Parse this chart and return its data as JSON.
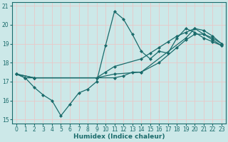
{
  "xlabel": "Humidex (Indice chaleur)",
  "bg_color": "#cce8e8",
  "grid_color": "#e8c8c8",
  "line_color": "#1a6b6b",
  "xlim": [
    -0.5,
    23.5
  ],
  "ylim": [
    14.8,
    21.2
  ],
  "yticks": [
    15,
    16,
    17,
    18,
    19,
    20,
    21
  ],
  "xticks": [
    0,
    1,
    2,
    3,
    4,
    5,
    6,
    7,
    8,
    9,
    10,
    11,
    12,
    13,
    14,
    15,
    16,
    17,
    18,
    19,
    20,
    21,
    22,
    23
  ],
  "series": [
    {
      "x": [
        0,
        1,
        2,
        3,
        4,
        5,
        6,
        7,
        8,
        9,
        10,
        11,
        12,
        13,
        14,
        15,
        16,
        17,
        18,
        19,
        20,
        21,
        22,
        23
      ],
      "y": [
        17.4,
        17.2,
        16.7,
        16.3,
        16.0,
        15.2,
        15.8,
        16.4,
        16.6,
        17.0,
        18.9,
        20.7,
        20.3,
        19.5,
        18.6,
        18.2,
        18.6,
        18.5,
        19.3,
        19.8,
        19.6,
        19.3,
        19.1,
        18.9
      ]
    },
    {
      "x": [
        0,
        1,
        2,
        11,
        12,
        13,
        14,
        19,
        20,
        21,
        22,
        23
      ],
      "y": [
        17.4,
        17.2,
        17.2,
        17.2,
        17.3,
        17.5,
        17.5,
        19.3,
        19.8,
        19.7,
        19.4,
        19.0
      ]
    },
    {
      "x": [
        0,
        2,
        9,
        10,
        11,
        14,
        15,
        16,
        17,
        18,
        19,
        20,
        21,
        22,
        23
      ],
      "y": [
        17.4,
        17.2,
        17.2,
        17.5,
        17.8,
        18.2,
        18.5,
        18.8,
        19.1,
        19.4,
        19.6,
        19.8,
        19.5,
        19.2,
        18.9
      ]
    },
    {
      "x": [
        0,
        2,
        9,
        11,
        14,
        16,
        18,
        19,
        20,
        21,
        22,
        23
      ],
      "y": [
        17.4,
        17.2,
        17.2,
        17.4,
        17.5,
        18.0,
        18.8,
        19.2,
        19.5,
        19.5,
        19.3,
        19.0
      ]
    }
  ]
}
